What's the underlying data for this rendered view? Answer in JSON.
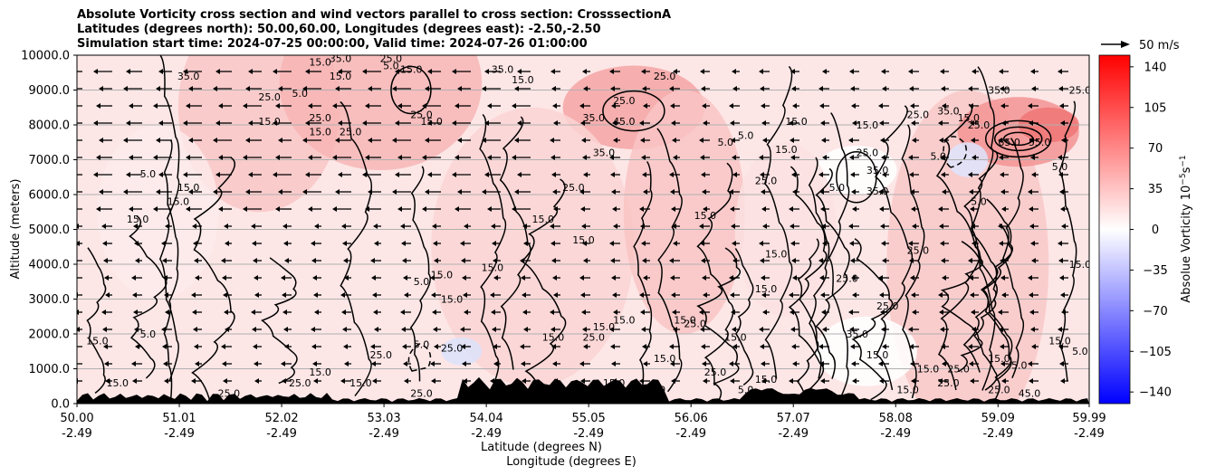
{
  "chart_data": {
    "type": "contour",
    "title_lines": [
      "Absolute Vorticity cross section and wind vectors parallel to cross section: CrosssectionA",
      "Latitudes (degrees north): 50.00,60.00, Longitudes (degrees east): -2.50,-2.50",
      "Simulation start time: 2024-07-25 00:00:00, Valid time: 2024-07-26 01:00:00"
    ],
    "xlabel_line1": "Latitude (degrees N)",
    "xlabel_line2": "Longitude (degrees E)",
    "ylabel": "Altitude (meters)",
    "x_ticks": [
      {
        "lat": "50.00",
        "lon": "-2.49"
      },
      {
        "lat": "51.01",
        "lon": "-2.49"
      },
      {
        "lat": "52.02",
        "lon": "-2.49"
      },
      {
        "lat": "53.03",
        "lon": "-2.49"
      },
      {
        "lat": "54.04",
        "lon": "-2.49"
      },
      {
        "lat": "55.05",
        "lon": "-2.49"
      },
      {
        "lat": "56.06",
        "lon": "-2.49"
      },
      {
        "lat": "57.07",
        "lon": "-2.49"
      },
      {
        "lat": "58.08",
        "lon": "-2.49"
      },
      {
        "lat": "59.09",
        "lon": "-2.49"
      },
      {
        "lat": "59.99",
        "lon": "-2.49"
      }
    ],
    "y_ticks": [
      "0.0",
      "1000.0",
      "2000.0",
      "3000.0",
      "4000.0",
      "5000.0",
      "6000.0",
      "7000.0",
      "8000.0",
      "9000.0",
      "10000.0"
    ],
    "ylim": [
      0,
      10000
    ],
    "xlim": [
      50.0,
      59.99
    ],
    "grid": "horizontal",
    "colorbar": {
      "label": "Absolue Vorticity 10",
      "label_exp": "−5",
      "label_unit": "s",
      "label_unit_exp": "−1",
      "ticks": [
        "140",
        "105",
        "70",
        "35",
        "0",
        "−35",
        "−70",
        "−105",
        "−140"
      ],
      "range": [
        -150,
        150
      ],
      "colormap": "bwr"
    },
    "quiver_key": "50 m/s",
    "contour_labels": [
      {
        "text": "15.0",
        "x": 50.2,
        "y": 1700
      },
      {
        "text": "5.0",
        "x": 50.7,
        "y": 1900
      },
      {
        "text": "15.0",
        "x": 50.6,
        "y": 5200
      },
      {
        "text": "5.0",
        "x": 50.7,
        "y": 6500
      },
      {
        "text": "15.0",
        "x": 51.0,
        "y": 5700
      },
      {
        "text": "15.0",
        "x": 51.1,
        "y": 6100
      },
      {
        "text": "35.0",
        "x": 51.1,
        "y": 9300
      },
      {
        "text": "25.0",
        "x": 51.9,
        "y": 8700
      },
      {
        "text": "15.0",
        "x": 51.9,
        "y": 8000
      },
      {
        "text": "25.0",
        "x": 52.1,
        "y": 10000
      },
      {
        "text": "15.0",
        "x": 52.4,
        "y": 9700
      },
      {
        "text": "35.0",
        "x": 52.6,
        "y": 9800
      },
      {
        "text": "5.0",
        "x": 52.2,
        "y": 8800
      },
      {
        "text": "15.0",
        "x": 52.6,
        "y": 9300
      },
      {
        "text": "25.0",
        "x": 52.4,
        "y": 8100
      },
      {
        "text": "15.0",
        "x": 52.4,
        "y": 7700
      },
      {
        "text": "25.0",
        "x": 52.7,
        "y": 7700
      },
      {
        "text": "5.0",
        "x": 53.1,
        "y": 9600
      },
      {
        "text": "25.0",
        "x": 53.1,
        "y": 9800
      },
      {
        "text": "15.0",
        "x": 53.3,
        "y": 9500
      },
      {
        "text": "25.0",
        "x": 53.4,
        "y": 8200
      },
      {
        "text": "15.0",
        "x": 53.5,
        "y": 8000
      },
      {
        "text": "35.0",
        "x": 54.2,
        "y": 9500
      },
      {
        "text": "15.0",
        "x": 54.4,
        "y": 9200
      },
      {
        "text": "25.0",
        "x": 55.4,
        "y": 8600
      },
      {
        "text": "35.0",
        "x": 55.1,
        "y": 8100
      },
      {
        "text": "45.0",
        "x": 55.4,
        "y": 8000
      },
      {
        "text": "35.0",
        "x": 55.2,
        "y": 7100
      },
      {
        "text": "25.0",
        "x": 55.8,
        "y": 9300
      },
      {
        "text": "25.0",
        "x": 54.9,
        "y": 6100
      },
      {
        "text": "15.0",
        "x": 54.6,
        "y": 5200
      },
      {
        "text": "15.0",
        "x": 55.0,
        "y": 4600
      },
      {
        "text": "5.0",
        "x": 53.4,
        "y": 3400
      },
      {
        "text": "15.0",
        "x": 53.6,
        "y": 3600
      },
      {
        "text": "15.0",
        "x": 54.1,
        "y": 3800
      },
      {
        "text": "15.0",
        "x": 53.7,
        "y": 2900
      },
      {
        "text": "25.0",
        "x": 53.7,
        "y": 1500
      },
      {
        "text": "5.0",
        "x": 53.4,
        "y": 1600
      },
      {
        "text": "25.0",
        "x": 53.0,
        "y": 1300
      },
      {
        "text": "15.0",
        "x": 54.7,
        "y": 1800
      },
      {
        "text": "25.0",
        "x": 55.1,
        "y": 1800
      },
      {
        "text": "15.0",
        "x": 55.2,
        "y": 2100
      },
      {
        "text": "15.0",
        "x": 55.4,
        "y": 2300
      },
      {
        "text": "15.0",
        "x": 56.0,
        "y": 2300
      },
      {
        "text": "25.0",
        "x": 56.1,
        "y": 2200
      },
      {
        "text": "15.0",
        "x": 56.2,
        "y": 5300
      },
      {
        "text": "5.0",
        "x": 56.4,
        "y": 7400
      },
      {
        "text": "5.0",
        "x": 56.6,
        "y": 7600
      },
      {
        "text": "15.0",
        "x": 57.1,
        "y": 8000
      },
      {
        "text": "15.0",
        "x": 57.0,
        "y": 7200
      },
      {
        "text": "25.0",
        "x": 56.8,
        "y": 6300
      },
      {
        "text": "15.0",
        "x": 56.9,
        "y": 4200
      },
      {
        "text": "15.0",
        "x": 56.8,
        "y": 3200
      },
      {
        "text": "15.0",
        "x": 56.5,
        "y": 1800
      },
      {
        "text": "5.0",
        "x": 57.5,
        "y": 6100
      },
      {
        "text": "25.0",
        "x": 57.8,
        "y": 7100
      },
      {
        "text": "35.0",
        "x": 57.9,
        "y": 6600
      },
      {
        "text": "35.0",
        "x": 57.9,
        "y": 6000
      },
      {
        "text": "15.0",
        "x": 57.8,
        "y": 7900
      },
      {
        "text": "25.0",
        "x": 58.3,
        "y": 8200
      },
      {
        "text": "35.0",
        "x": 58.6,
        "y": 8300
      },
      {
        "text": "15.0",
        "x": 58.8,
        "y": 8100
      },
      {
        "text": "25.0",
        "x": 58.9,
        "y": 7900
      },
      {
        "text": "5.0",
        "x": 58.5,
        "y": 7000
      },
      {
        "text": "5.0",
        "x": 58.9,
        "y": 5700
      },
      {
        "text": "35.0",
        "x": 59.1,
        "y": 8900
      },
      {
        "text": "65.0",
        "x": 59.2,
        "y": 7400
      },
      {
        "text": "55.0",
        "x": 59.5,
        "y": 7400
      },
      {
        "text": "25.0",
        "x": 59.9,
        "y": 8900
      },
      {
        "text": "5.0",
        "x": 59.7,
        "y": 6700
      },
      {
        "text": "25.0",
        "x": 58.3,
        "y": 4300
      },
      {
        "text": "15.0",
        "x": 59.9,
        "y": 3900
      },
      {
        "text": "25.0",
        "x": 57.6,
        "y": 3500
      },
      {
        "text": "25.0",
        "x": 58.0,
        "y": 2700
      },
      {
        "text": "35.0",
        "x": 57.7,
        "y": 1900
      },
      {
        "text": "15.0",
        "x": 57.9,
        "y": 1300
      },
      {
        "text": "15.0",
        "x": 58.4,
        "y": 900
      },
      {
        "text": "25.0",
        "x": 58.7,
        "y": 900
      },
      {
        "text": "15.0",
        "x": 58.2,
        "y": 300
      },
      {
        "text": "25.0",
        "x": 58.6,
        "y": 500
      },
      {
        "text": "15.0",
        "x": 59.1,
        "y": 1200
      },
      {
        "text": "5.0",
        "x": 59.3,
        "y": 1000
      },
      {
        "text": "15.0",
        "x": 59.7,
        "y": 1700
      },
      {
        "text": "5.0",
        "x": 59.9,
        "y": 1400
      },
      {
        "text": "45.0",
        "x": 59.4,
        "y": 200
      },
      {
        "text": "25.0",
        "x": 59.1,
        "y": 300
      },
      {
        "text": "15.0",
        "x": 50.4,
        "y": 500
      },
      {
        "text": "25.0",
        "x": 51.5,
        "y": 200
      },
      {
        "text": "25.0",
        "x": 52.2,
        "y": 500
      },
      {
        "text": "15.0",
        "x": 52.4,
        "y": 800
      },
      {
        "text": "15.0",
        "x": 52.8,
        "y": 500
      },
      {
        "text": "25.0",
        "x": 53.4,
        "y": 200
      },
      {
        "text": "15.0",
        "x": 55.3,
        "y": 500
      },
      {
        "text": "15.0",
        "x": 55.7,
        "y": 300
      },
      {
        "text": "15.0",
        "x": 56.8,
        "y": 600
      },
      {
        "text": "25.0",
        "x": 56.3,
        "y": 800
      },
      {
        "text": "15.0",
        "x": 55.8,
        "y": 1200
      },
      {
        "text": "5.0",
        "x": 56.6,
        "y": 300
      }
    ]
  }
}
